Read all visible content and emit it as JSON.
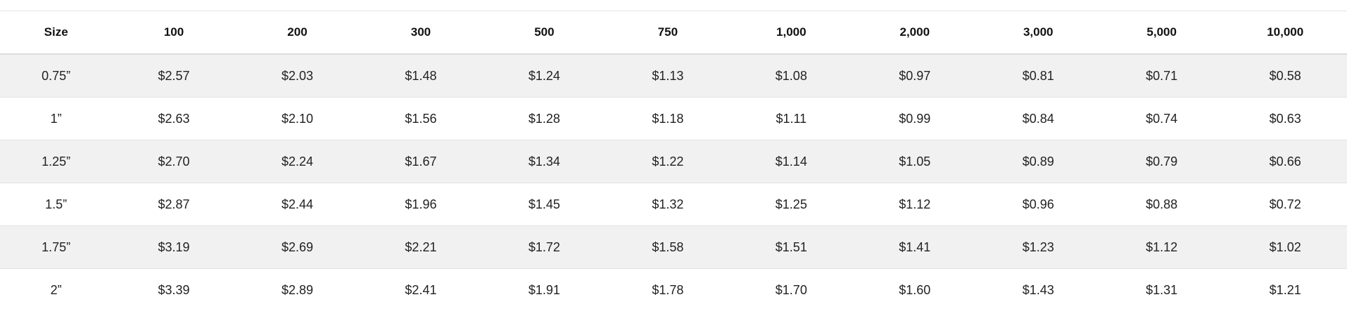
{
  "price_table": {
    "headers": [
      "Size",
      "100",
      "200",
      "300",
      "500",
      "750",
      "1,000",
      "2,000",
      "3,000",
      "5,000",
      "10,000"
    ],
    "rows": [
      {
        "size": "0.75”",
        "prices": [
          "$2.57",
          "$2.03",
          "$1.48",
          "$1.24",
          "$1.13",
          "$1.08",
          "$0.97",
          "$0.81",
          "$0.71",
          "$0.58"
        ]
      },
      {
        "size": "1”",
        "prices": [
          "$2.63",
          "$2.10",
          "$1.56",
          "$1.28",
          "$1.18",
          "$1.11",
          "$0.99",
          "$0.84",
          "$0.74",
          "$0.63"
        ]
      },
      {
        "size": "1.25”",
        "prices": [
          "$2.70",
          "$2.24",
          "$1.67",
          "$1.34",
          "$1.22",
          "$1.14",
          "$1.05",
          "$0.89",
          "$0.79",
          "$0.66"
        ]
      },
      {
        "size": "1.5”",
        "prices": [
          "$2.87",
          "$2.44",
          "$1.96",
          "$1.45",
          "$1.32",
          "$1.25",
          "$1.12",
          "$0.96",
          "$0.88",
          "$0.72"
        ]
      },
      {
        "size": "1.75”",
        "prices": [
          "$3.19",
          "$2.69",
          "$2.21",
          "$1.72",
          "$1.58",
          "$1.51",
          "$1.41",
          "$1.23",
          "$1.12",
          "$1.02"
        ]
      },
      {
        "size": "2”",
        "prices": [
          "$3.39",
          "$2.89",
          "$2.41",
          "$1.91",
          "$1.78",
          "$1.70",
          "$1.60",
          "$1.43",
          "$1.31",
          "$1.21"
        ]
      }
    ]
  },
  "colors": {
    "row_shade": "#f1f1f1",
    "divider": "#e2e2e2",
    "text": "#222222"
  }
}
